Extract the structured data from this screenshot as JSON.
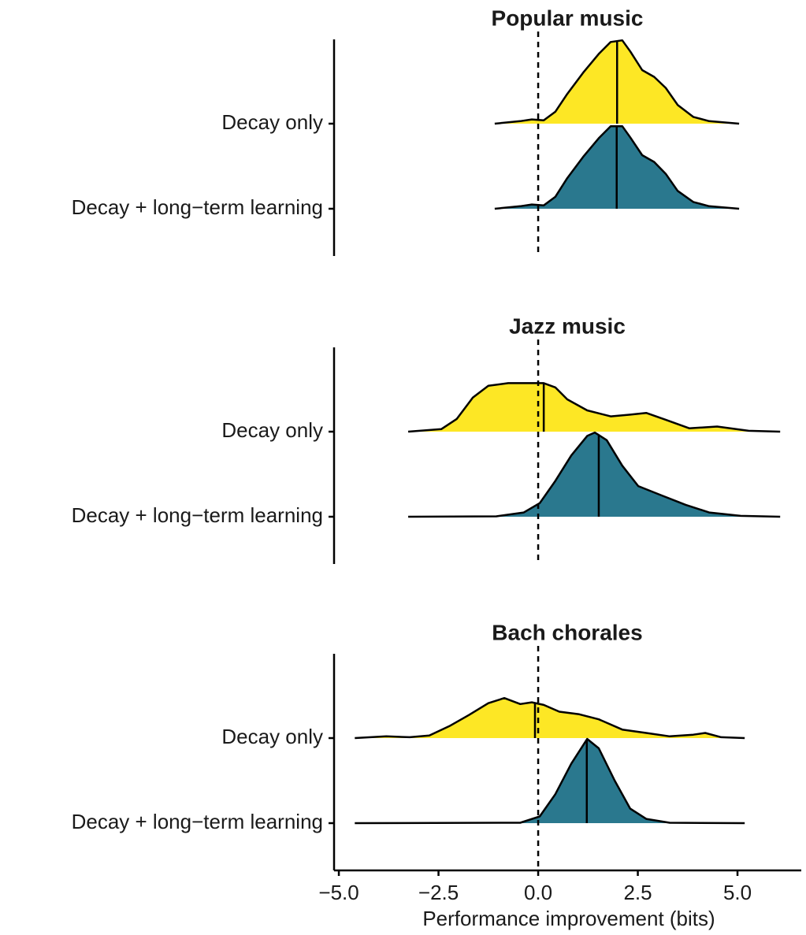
{
  "chart_data": {
    "type": "ridgeline",
    "xlabel": "Performance improvement (bits)",
    "xlim": [
      -5.12,
      6.6
    ],
    "xticks": [
      {
        "value": -5,
        "label": "−5.0"
      },
      {
        "value": -2.5,
        "label": "−2.5"
      },
      {
        "value": 0,
        "label": "0.0"
      },
      {
        "value": 2.5,
        "label": "2.5"
      },
      {
        "value": 5,
        "label": "5.0"
      }
    ],
    "reference_line": 0,
    "panels": [
      {
        "title": "Popular music",
        "series": [
          {
            "name": "Decay only",
            "color": "#fde725",
            "median": 1.98,
            "x": [
              -1.09,
              -0.45,
              -0.16,
              0.14,
              0.43,
              0.73,
              1.13,
              1.52,
              1.82,
              2.11,
              2.31,
              2.61,
              2.91,
              3.2,
              3.5,
              3.89,
              4.29,
              5.04
            ],
            "values": [
              0,
              0.03,
              0.05,
              0.04,
              0.14,
              0.35,
              0.6,
              0.82,
              0.96,
              0.98,
              0.85,
              0.63,
              0.55,
              0.42,
              0.22,
              0.08,
              0.03,
              0
            ]
          },
          {
            "name": "Decay + long−term learning",
            "color": "#2a788e",
            "median": 1.97,
            "x": [
              -1.09,
              -0.45,
              -0.16,
              0.14,
              0.43,
              0.73,
              1.13,
              1.52,
              1.82,
              2.11,
              2.31,
              2.61,
              2.91,
              3.2,
              3.5,
              3.89,
              4.29,
              5.04
            ],
            "values": [
              0,
              0.03,
              0.05,
              0.04,
              0.14,
              0.36,
              0.61,
              0.83,
              0.97,
              0.97,
              0.84,
              0.63,
              0.55,
              0.41,
              0.21,
              0.08,
              0.03,
              0
            ]
          }
        ]
      },
      {
        "title": "Jazz music",
        "series": [
          {
            "name": "Decay only",
            "color": "#fde725",
            "median": 0.14,
            "x": [
              -3.26,
              -2.43,
              -2.04,
              -1.64,
              -1.25,
              -0.75,
              -0.36,
              0.14,
              0.43,
              0.73,
              1.23,
              1.82,
              2.31,
              2.71,
              3.2,
              3.79,
              4.49,
              5.28,
              6.07
            ],
            "values": [
              0,
              0.03,
              0.15,
              0.4,
              0.54,
              0.57,
              0.57,
              0.57,
              0.52,
              0.38,
              0.25,
              0.18,
              0.2,
              0.22,
              0.14,
              0.04,
              0.06,
              0.01,
              0
            ]
          },
          {
            "name": "Decay + long−term learning",
            "color": "#2a788e",
            "median": 1.52,
            "x": [
              -3.26,
              -1.05,
              -0.36,
              0.04,
              0.43,
              0.83,
              1.23,
              1.42,
              1.72,
              2.11,
              2.51,
              3.1,
              3.7,
              4.29,
              5.08,
              6.07
            ],
            "values": [
              0,
              0.005,
              0.05,
              0.16,
              0.42,
              0.72,
              0.95,
              0.99,
              0.9,
              0.6,
              0.36,
              0.25,
              0.14,
              0.05,
              0.01,
              0
            ]
          }
        ]
      },
      {
        "title": "Bach chorales",
        "series": [
          {
            "name": "Decay only",
            "color": "#fde725",
            "median": -0.08,
            "x": [
              -4.6,
              -3.81,
              -3.22,
              -2.73,
              -2.23,
              -1.74,
              -1.25,
              -0.85,
              -0.45,
              -0.16,
              0.14,
              0.53,
              1.03,
              1.52,
              2.11,
              2.71,
              3.3,
              3.89,
              4.19,
              4.59,
              5.18
            ],
            "values": [
              0,
              0.02,
              0.01,
              0.03,
              0.14,
              0.27,
              0.41,
              0.47,
              0.4,
              0.42,
              0.39,
              0.31,
              0.28,
              0.22,
              0.1,
              0.06,
              0.02,
              0.04,
              0.06,
              0.01,
              0
            ]
          },
          {
            "name": "Decay + long−term learning",
            "color": "#2a788e",
            "median": 1.22,
            "x": [
              -4.6,
              -0.45,
              0.04,
              0.43,
              0.83,
              1.23,
              1.52,
              1.92,
              2.31,
              2.71,
              3.3,
              5.18
            ],
            "values": [
              0,
              0.005,
              0.08,
              0.34,
              0.7,
              0.99,
              0.88,
              0.5,
              0.17,
              0.05,
              0.005,
              0
            ]
          }
        ]
      }
    ]
  }
}
